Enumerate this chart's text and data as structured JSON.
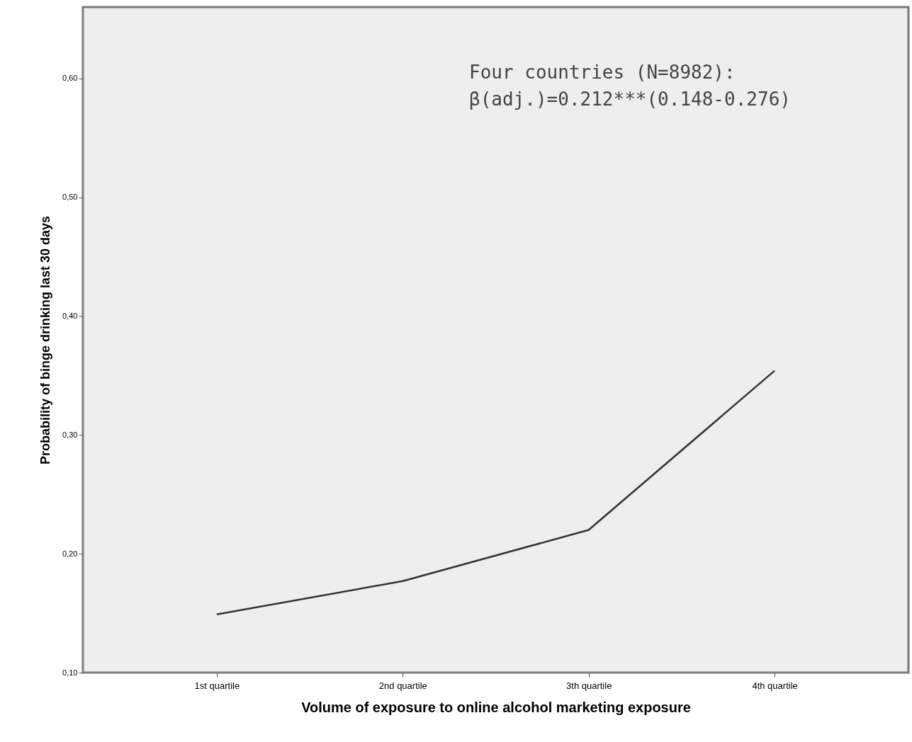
{
  "chart_data": {
    "type": "line",
    "xlabel": "Volume of exposure to online alcohol marketing exposure",
    "ylabel": "Probability of binge drinking last 30 days",
    "categories": [
      "1st quartile",
      "2nd quartile",
      "3th quartile",
      "4th quartile"
    ],
    "series": [
      {
        "color": "#333333",
        "values": [
          0.149,
          0.177,
          0.22,
          0.354
        ]
      }
    ],
    "ylim": [
      0.1,
      0.66
    ],
    "yticks": [
      {
        "value": 0.1,
        "label": "0,10"
      },
      {
        "value": 0.2,
        "label": "0,20"
      },
      {
        "value": 0.3,
        "label": "0,30"
      },
      {
        "value": 0.4,
        "label": "0,40"
      },
      {
        "value": 0.5,
        "label": "0,50"
      },
      {
        "value": 0.6,
        "label": "0,60"
      }
    ],
    "annotations": [
      "Four countries (N=8982):",
      "β(adj.)=0.212***(0.148-0.276)"
    ],
    "grid": false,
    "marker": "none",
    "line_style": "solid"
  }
}
